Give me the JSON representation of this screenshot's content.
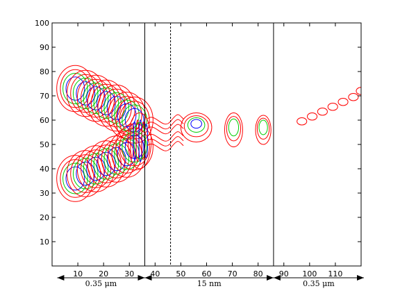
{
  "chart_data": {
    "type": "contour",
    "xlim": [
      0,
      120
    ],
    "ylim": [
      0,
      100
    ],
    "xticks": [
      10,
      20,
      30,
      40,
      50,
      60,
      70,
      80,
      90,
      100,
      110
    ],
    "yticks": [
      10,
      20,
      30,
      40,
      50,
      60,
      70,
      80,
      90,
      100
    ],
    "grid": false,
    "colors": {
      "outer": "#ff0000",
      "middle": "#00cc00",
      "inner": "#0000ff",
      "frame": "#000000"
    },
    "boundaries": [
      {
        "name": "interface-left",
        "x": 36,
        "style": "solid"
      },
      {
        "name": "interface-dashed",
        "x": 46,
        "style": "dashed"
      },
      {
        "name": "interface-right",
        "x": 86,
        "style": "solid"
      }
    ],
    "upper_beam_centers": [
      [
        9,
        73
      ],
      [
        13,
        71
      ],
      [
        17,
        69
      ],
      [
        21,
        67
      ],
      [
        25,
        65
      ],
      [
        29,
        62
      ],
      [
        32,
        60
      ]
    ],
    "lower_beam_centers": [
      [
        9,
        36
      ],
      [
        13,
        38
      ],
      [
        17,
        40
      ],
      [
        21,
        42
      ],
      [
        25,
        44
      ],
      [
        29,
        46
      ],
      [
        32,
        49
      ]
    ],
    "focus_region": {
      "x": [
        30,
        38
      ],
      "y": [
        40,
        63
      ]
    },
    "lobes": [
      {
        "x": 56,
        "y": 57,
        "rx": 6,
        "ry": 6
      },
      {
        "x": 70.5,
        "y": 56,
        "rx": 3.5,
        "ry": 7
      },
      {
        "x": 82,
        "y": 56,
        "rx": 3,
        "ry": 6
      }
    ],
    "right_chain": [
      [
        97,
        59.5
      ],
      [
        101,
        61.5
      ],
      [
        105,
        63.5
      ],
      [
        109,
        65.5
      ],
      [
        113,
        67.5
      ],
      [
        117,
        69.5
      ],
      [
        120,
        72
      ]
    ],
    "annotations": [
      {
        "label": "0.35  μm",
        "from": 2,
        "to": 36
      },
      {
        "label": "15  nm",
        "from": 36,
        "to": 86
      },
      {
        "label": "0.35  μm",
        "from": 86,
        "to": 122
      }
    ]
  }
}
